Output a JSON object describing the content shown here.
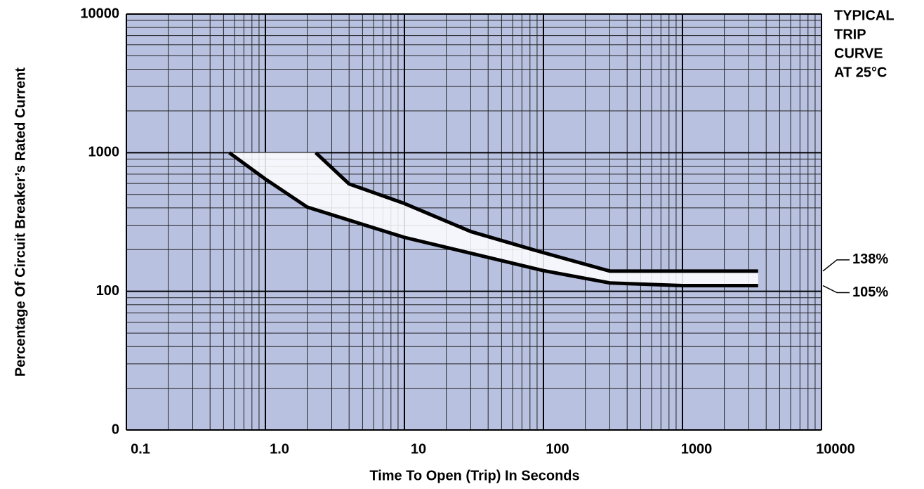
{
  "chart_data": {
    "type": "line",
    "annotation": [
      "TYPICAL",
      "TRIP",
      "CURVE",
      "AT 25°C"
    ],
    "xlabel": "Time To Open (Trip) In Seconds",
    "ylabel": "Percentage Of Circuit Breaker’s Rated Current",
    "xscale": "log",
    "yscale": "log",
    "grid": true,
    "xlim": [
      0.1,
      10000
    ],
    "ylim": [
      10,
      10000
    ],
    "xticks": [
      0.1,
      {
        "value": 1,
        "label": "1.0"
      },
      10,
      100,
      1000,
      10000
    ],
    "yticks": [
      {
        "value": 10,
        "label": "0"
      },
      100,
      1000,
      10000
    ],
    "series": [
      {
        "name": "138%",
        "color": "#000000",
        "x": [
          2.3,
          4,
          10,
          30,
          100,
          300,
          1000,
          3500
        ],
        "values": [
          1000,
          595,
          430,
          270,
          190,
          140,
          140,
          140
        ]
      },
      {
        "name": "105%",
        "color": "#000000",
        "x": [
          0.55,
          1,
          2,
          10,
          100,
          300,
          1000,
          3500
        ],
        "values": [
          1000,
          645,
          405,
          245,
          141,
          115,
          110,
          110
        ]
      }
    ]
  }
}
